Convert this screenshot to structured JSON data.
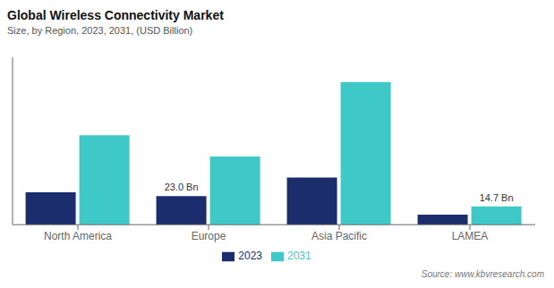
{
  "chart_data": {
    "type": "bar",
    "title": "Global Wireless  Connectivity Market",
    "subtitle": "Size, by Region, 2023, 2031, (USD Billion)",
    "source": "Source: www.kbvresearch.com",
    "categories": [
      "North America",
      "Europe",
      "Asia Pacific",
      "LAMEA"
    ],
    "series": [
      {
        "name": "2023",
        "color": "#1c2d6e",
        "values": [
          26.0,
          23.0,
          38.0,
          8.0
        ]
      },
      {
        "name": "2031",
        "color": "#3ec8c8",
        "values": [
          72.0,
          55.0,
          115.0,
          14.7
        ]
      }
    ],
    "annotations": [
      {
        "text": "23.0 Bn",
        "category": "Europe",
        "series": "2023"
      },
      {
        "text": "14.7 Bn",
        "category": "LAMEA",
        "series": "2031"
      }
    ],
    "ylim": [
      0,
      135
    ],
    "grid": false,
    "legend": "bottom",
    "tick_labels": "x"
  }
}
